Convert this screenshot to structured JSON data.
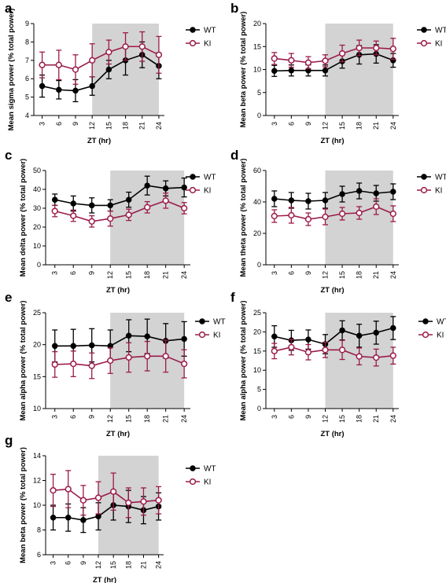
{
  "colors": {
    "wt": "#000000",
    "ki": "#9b1b4a",
    "dark_shade": "#d3d3d3"
  },
  "chart_data": [
    {
      "panel": "a",
      "type": "line",
      "ylabel": "Mean sigma power (% total power)",
      "xlabel": "ZT (hr)",
      "x": [
        3,
        6,
        9,
        12,
        15,
        18,
        21,
        24
      ],
      "xlim": [
        1.5,
        25
      ],
      "ylim": [
        4,
        9
      ],
      "yticks": [
        4,
        5,
        6,
        7,
        8,
        9
      ],
      "shaded_x": [
        12,
        24
      ],
      "legend": "right",
      "series": [
        {
          "name": "WT",
          "values": [
            5.6,
            5.4,
            5.35,
            5.6,
            6.5,
            7.0,
            7.3,
            6.7
          ],
          "err": [
            0.6,
            0.5,
            0.6,
            0.5,
            0.5,
            0.8,
            0.7,
            0.7
          ]
        },
        {
          "name": "KI",
          "values": [
            6.75,
            6.75,
            6.5,
            7.0,
            7.45,
            7.75,
            7.75,
            7.3
          ],
          "err": [
            0.7,
            0.8,
            0.8,
            0.9,
            0.65,
            0.75,
            0.8,
            1.0
          ]
        }
      ]
    },
    {
      "panel": "b",
      "type": "line",
      "ylabel": "Mean beta power (% total power)",
      "xlabel": "ZT (hr)",
      "x": [
        3,
        6,
        9,
        12,
        15,
        18,
        21,
        24
      ],
      "xlim": [
        1.5,
        25
      ],
      "ylim": [
        0,
        20
      ],
      "yticks": [
        0,
        5,
        10,
        15,
        20
      ],
      "shaded_x": [
        12,
        24
      ],
      "legend": "right",
      "series": [
        {
          "name": "WT",
          "values": [
            9.7,
            9.8,
            9.8,
            9.8,
            11.8,
            13.2,
            13.4,
            12.0
          ],
          "err": [
            1.2,
            1.2,
            1.2,
            1.2,
            1.5,
            2.0,
            2.0,
            1.5
          ]
        },
        {
          "name": "KI",
          "values": [
            12.4,
            12.0,
            11.5,
            11.9,
            13.5,
            14.7,
            14.7,
            14.5
          ],
          "err": [
            1.3,
            1.5,
            1.3,
            1.3,
            1.8,
            1.7,
            1.5,
            2.3
          ]
        }
      ]
    },
    {
      "panel": "c",
      "type": "line",
      "ylabel": "Mean delta power (% total power)",
      "xlabel": "ZT (hr)",
      "x": [
        3,
        6,
        9,
        12,
        15,
        18,
        21,
        24
      ],
      "xlim": [
        1.5,
        25
      ],
      "ylim": [
        0,
        50
      ],
      "yticks": [
        0,
        10,
        20,
        30,
        40,
        50
      ],
      "shaded_x": [
        12,
        24
      ],
      "legend": "right",
      "series": [
        {
          "name": "WT",
          "values": [
            34.5,
            32.5,
            31.5,
            31.5,
            34.5,
            42.0,
            40.5,
            41.0
          ],
          "err": [
            3,
            4,
            4,
            3,
            4,
            5,
            4,
            5
          ]
        },
        {
          "name": "KI",
          "values": [
            28.5,
            26.0,
            23.0,
            24.5,
            26.5,
            30.5,
            34.0,
            30.0
          ],
          "err": [
            3,
            3,
            3,
            4,
            3,
            3,
            4,
            3
          ]
        }
      ]
    },
    {
      "panel": "d",
      "type": "line",
      "ylabel": "Mean theta power (% total power)",
      "xlabel": "ZT (hr)",
      "x": [
        3,
        6,
        9,
        12,
        15,
        18,
        21,
        24
      ],
      "xlim": [
        1.5,
        25
      ],
      "ylim": [
        0,
        60
      ],
      "yticks": [
        0,
        20,
        40,
        60
      ],
      "shaded_x": [
        12,
        24
      ],
      "legend": "right",
      "series": [
        {
          "name": "WT",
          "values": [
            42.0,
            41.0,
            40.5,
            41.0,
            45.0,
            47.0,
            45.5,
            46.5
          ],
          "err": [
            5,
            5,
            5,
            5,
            5,
            5,
            5,
            5
          ]
        },
        {
          "name": "KI",
          "values": [
            31.0,
            31.5,
            29.0,
            30.5,
            32.5,
            33.0,
            37.0,
            32.5
          ],
          "err": [
            4,
            5,
            4,
            5,
            4,
            4,
            5,
            5
          ]
        }
      ]
    },
    {
      "panel": "e",
      "type": "line",
      "ylabel": "Mean alpha power (% total power)",
      "xlabel": "ZT (hr)",
      "x": [
        3,
        6,
        9,
        12,
        15,
        18,
        21,
        24
      ],
      "xlim": [
        1.5,
        25
      ],
      "ylim": [
        10,
        25
      ],
      "yticks": [
        10,
        15,
        20,
        25
      ],
      "shaded_x": [
        12,
        24
      ],
      "legend": "right",
      "series": [
        {
          "name": "WT",
          "values": [
            19.8,
            19.8,
            19.9,
            19.8,
            21.4,
            21.3,
            20.6,
            20.9
          ],
          "err": [
            2.5,
            2.6,
            2.6,
            2.5,
            2.5,
            2.7,
            2.7,
            2.7
          ]
        },
        {
          "name": "KI",
          "values": [
            16.9,
            17.0,
            16.7,
            17.5,
            18.0,
            18.2,
            18.2,
            17.0
          ],
          "err": [
            2.0,
            2.0,
            2.0,
            2.0,
            2.3,
            2.3,
            2.5,
            2.2
          ]
        }
      ]
    },
    {
      "panel": "f",
      "type": "line",
      "ylabel": "Mean alpha power (% total power)",
      "xlabel": "ZT (hr)",
      "x": [
        3,
        6,
        9,
        12,
        15,
        18,
        21,
        24
      ],
      "xlim": [
        1.5,
        25
      ],
      "ylim": [
        0,
        25
      ],
      "yticks": [
        0,
        5,
        10,
        15,
        20,
        25
      ],
      "shaded_x": [
        12,
        24
      ],
      "legend": "right",
      "series": [
        {
          "name": "WT",
          "values": [
            18.8,
            17.8,
            18.0,
            16.8,
            20.4,
            19.0,
            19.8,
            21.0
          ],
          "err": [
            2.8,
            2.6,
            2.5,
            2.5,
            2.5,
            3.0,
            3.0,
            3.0
          ]
        },
        {
          "name": "KI",
          "values": [
            15.0,
            16.0,
            14.7,
            15.3,
            15.3,
            13.6,
            13.3,
            13.8
          ],
          "err": [
            2.0,
            2.0,
            2.0,
            2.0,
            2.5,
            2.2,
            2.2,
            2.2
          ]
        }
      ]
    },
    {
      "panel": "g",
      "type": "line",
      "ylabel": "Mean beta power (% total power)",
      "xlabel": "ZT (hr)",
      "x": [
        3,
        6,
        9,
        12,
        15,
        18,
        21,
        24
      ],
      "xlim": [
        1.5,
        25
      ],
      "ylim": [
        6,
        14
      ],
      "yticks": [
        6,
        8,
        10,
        12,
        14
      ],
      "shaded_x": [
        12,
        24
      ],
      "legend": "right",
      "series": [
        {
          "name": "WT",
          "values": [
            9.0,
            9.0,
            8.8,
            9.1,
            10.0,
            9.9,
            9.6,
            9.9
          ],
          "err": [
            1.0,
            1.1,
            1.0,
            1.1,
            1.2,
            1.3,
            1.1,
            1.1
          ]
        },
        {
          "name": "KI",
          "values": [
            11.2,
            11.3,
            10.4,
            10.6,
            11.1,
            10.2,
            10.3,
            10.4
          ],
          "err": [
            1.3,
            1.5,
            1.2,
            1.3,
            1.5,
            1.2,
            1.1,
            1.1
          ]
        }
      ]
    }
  ]
}
